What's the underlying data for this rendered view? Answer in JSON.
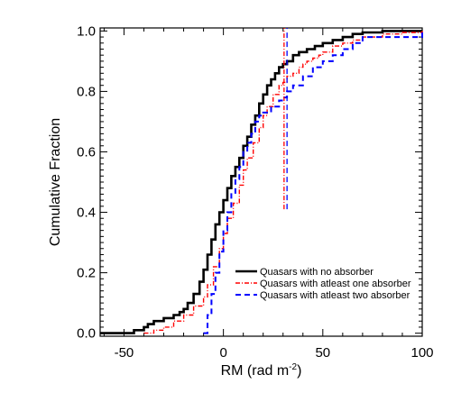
{
  "chart_data": {
    "type": "line",
    "title": "",
    "xlabel": "RM (rad m",
    "xlabel_superscript": "-2",
    "xlabel_suffix": ")",
    "ylabel": "Cumulative Fraction",
    "xlim": [
      -62,
      100
    ],
    "ylim": [
      -0.01,
      1.01
    ],
    "xticks": [
      -50,
      0,
      50,
      100
    ],
    "xtick_labels": [
      "-50",
      "0",
      "50",
      "100"
    ],
    "yticks": [
      0.0,
      0.2,
      0.4,
      0.6,
      0.8,
      1.0
    ],
    "ytick_labels": [
      "0.0",
      "0.2",
      "0.4",
      "0.6",
      "0.8",
      "1.0"
    ],
    "grid": false,
    "legend_position": "bottom-right",
    "series": [
      {
        "name": "Quasars with no absorber",
        "color": "#000000",
        "dash": "solid",
        "x": [
          -62,
          -45,
          -40,
          -38,
          -35,
          -30,
          -25,
          -22,
          -20,
          -18,
          -15,
          -12,
          -10,
          -8,
          -6,
          -4,
          -2,
          0,
          2,
          4,
          6,
          8,
          10,
          12,
          14,
          16,
          18,
          20,
          22,
          24,
          26,
          28,
          30,
          32,
          35,
          38,
          42,
          46,
          50,
          55,
          60,
          65,
          70,
          80,
          90,
          100
        ],
        "values": [
          0.0,
          0.01,
          0.02,
          0.03,
          0.04,
          0.05,
          0.06,
          0.07,
          0.08,
          0.1,
          0.13,
          0.17,
          0.21,
          0.26,
          0.31,
          0.36,
          0.4,
          0.44,
          0.48,
          0.52,
          0.55,
          0.58,
          0.62,
          0.65,
          0.69,
          0.72,
          0.76,
          0.79,
          0.82,
          0.84,
          0.86,
          0.88,
          0.89,
          0.9,
          0.92,
          0.93,
          0.94,
          0.95,
          0.96,
          0.97,
          0.98,
          0.99,
          0.995,
          1.0,
          1.0,
          1.0
        ]
      },
      {
        "name": "Quasars with atleast one absorber",
        "color": "#ff0000",
        "dash": "dash-dot",
        "x": [
          -40,
          -35,
          -30,
          -25,
          -20,
          -15,
          -10,
          -8,
          -5,
          -2,
          0,
          2,
          5,
          8,
          10,
          12,
          15,
          18,
          20,
          22,
          25,
          28,
          30,
          32,
          35,
          38,
          40,
          42,
          45,
          48,
          50,
          55,
          60,
          65,
          70,
          80,
          90,
          100
        ],
        "values": [
          0.0,
          0.01,
          0.02,
          0.04,
          0.06,
          0.09,
          0.12,
          0.16,
          0.22,
          0.28,
          0.33,
          0.38,
          0.43,
          0.49,
          0.54,
          0.58,
          0.63,
          0.68,
          0.72,
          0.75,
          0.79,
          0.82,
          0.83,
          0.85,
          0.86,
          0.88,
          0.89,
          0.9,
          0.91,
          0.92,
          0.93,
          0.95,
          0.96,
          0.97,
          0.98,
          0.99,
          0.995,
          1.0
        ]
      },
      {
        "name": "Quasars with atleast two absorber",
        "color": "#0000ff",
        "dash": "dashed",
        "x": [
          -10,
          -8,
          -6,
          -4,
          -2,
          0,
          2,
          4,
          6,
          8,
          10,
          12,
          14,
          16,
          18,
          20,
          24,
          28,
          30,
          32,
          35,
          40,
          45,
          50,
          55,
          60,
          65,
          70,
          100
        ],
        "values": [
          0.0,
          0.06,
          0.13,
          0.2,
          0.27,
          0.34,
          0.4,
          0.46,
          0.51,
          0.55,
          0.6,
          0.63,
          0.66,
          0.7,
          0.72,
          0.73,
          0.75,
          0.77,
          0.78,
          0.8,
          0.82,
          0.85,
          0.88,
          0.9,
          0.92,
          0.94,
          0.96,
          0.98,
          1.0
        ]
      }
    ],
    "vertical_markers": [
      {
        "x": 30.5,
        "y_range": [
          0.41,
          1.01
        ],
        "color": "#ff0000",
        "dash": "dash-dot"
      },
      {
        "x": 32,
        "y_range": [
          0.41,
          1.01
        ],
        "color": "#0000ff",
        "dash": "dashed"
      }
    ]
  }
}
